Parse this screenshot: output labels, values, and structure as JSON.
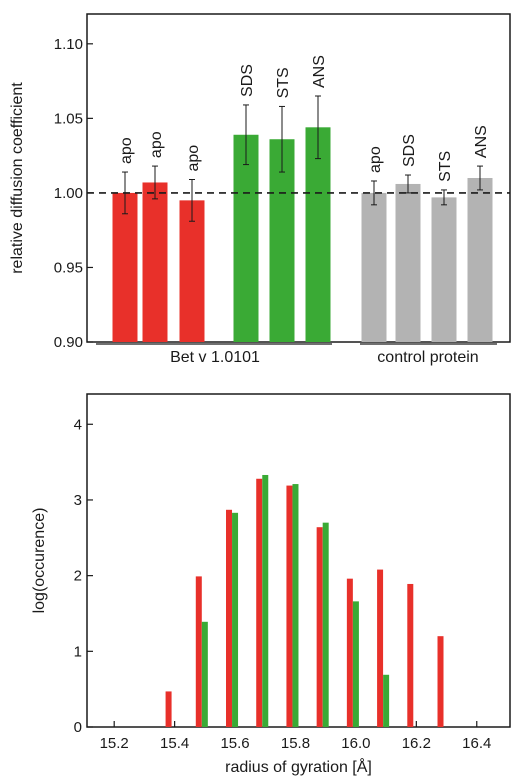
{
  "chart_data": [
    {
      "type": "bar",
      "ylabel": "relative diffusion coefficient",
      "ylim": [
        0.9,
        1.12
      ],
      "yticks": [
        "0.90",
        "0.95",
        "1.00",
        "1.05",
        "1.10"
      ],
      "reference_line": 1.0,
      "grid": false,
      "groups": [
        "Bet v 1.0101",
        "control protein"
      ],
      "bars": [
        {
          "label": "apo",
          "group": 0,
          "value": 1.0,
          "err": 0.014,
          "color": "#e8302a"
        },
        {
          "label": "apo",
          "group": 0,
          "value": 1.007,
          "err": 0.011,
          "color": "#e8302a"
        },
        {
          "label": "apo",
          "group": 0,
          "value": 0.995,
          "err": 0.014,
          "color": "#e8302a"
        },
        {
          "label": "SDS",
          "group": 0,
          "value": 1.039,
          "err": 0.02,
          "color": "#3aaa35"
        },
        {
          "label": "STS",
          "group": 0,
          "value": 1.036,
          "err": 0.022,
          "color": "#3aaa35"
        },
        {
          "label": "ANS",
          "group": 0,
          "value": 1.044,
          "err": 0.021,
          "color": "#3aaa35"
        },
        {
          "label": "apo",
          "group": 1,
          "value": 1.0,
          "err": 0.008,
          "color": "#b3b3b3"
        },
        {
          "label": "SDS",
          "group": 1,
          "value": 1.006,
          "err": 0.006,
          "color": "#b3b3b3"
        },
        {
          "label": "STS",
          "group": 1,
          "value": 0.997,
          "err": 0.005,
          "color": "#b3b3b3"
        },
        {
          "label": "ANS",
          "group": 1,
          "value": 1.01,
          "err": 0.008,
          "color": "#b3b3b3"
        }
      ]
    },
    {
      "type": "bar",
      "xlabel": "radius of gyration [Å]",
      "ylabel": "log(occurence)",
      "xlim": [
        15.11,
        16.51
      ],
      "ylim": [
        0,
        4.4
      ],
      "xticks": [
        "15.2",
        "15.4",
        "15.6",
        "15.8",
        "16.0",
        "16.2",
        "16.4"
      ],
      "yticks": [
        "0",
        "1",
        "2",
        "3",
        "4"
      ],
      "grid": false,
      "series": [
        {
          "color": "#e8302a",
          "x": [
            15.38,
            15.48,
            15.58,
            15.68,
            15.78,
            15.88,
            15.98,
            16.08,
            16.18,
            16.28
          ],
          "values": [
            0.47,
            1.99,
            2.87,
            3.28,
            3.19,
            2.64,
            1.96,
            2.08,
            1.89,
            1.2
          ]
        },
        {
          "color": "#3aaa35",
          "x": [
            15.5,
            15.6,
            15.7,
            15.8,
            15.9,
            16.0,
            16.1
          ],
          "values": [
            1.39,
            2.83,
            3.33,
            3.21,
            2.7,
            1.66,
            0.69
          ]
        }
      ]
    }
  ]
}
